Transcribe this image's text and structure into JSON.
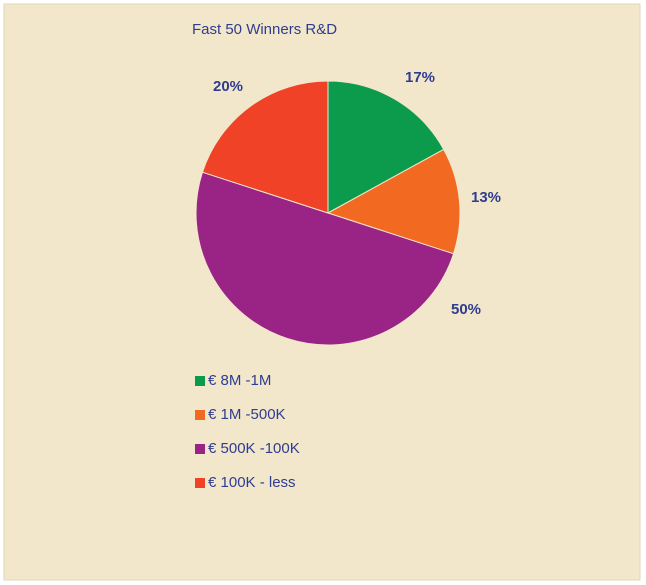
{
  "chart_data": {
    "type": "pie",
    "title": "Fast 50 Winners R&D",
    "categories": [
      "€ 8M -1M",
      "€ 1M -500K",
      "€ 500K -100K",
      "€ 100K - less"
    ],
    "values": [
      17,
      13,
      50,
      20
    ],
    "value_labels": [
      "17%",
      "13%",
      "50%",
      "20%"
    ],
    "colors": [
      "#0c9a4c",
      "#f26a22",
      "#9a2386",
      "#ef4226"
    ],
    "legend": "bottom-left"
  }
}
